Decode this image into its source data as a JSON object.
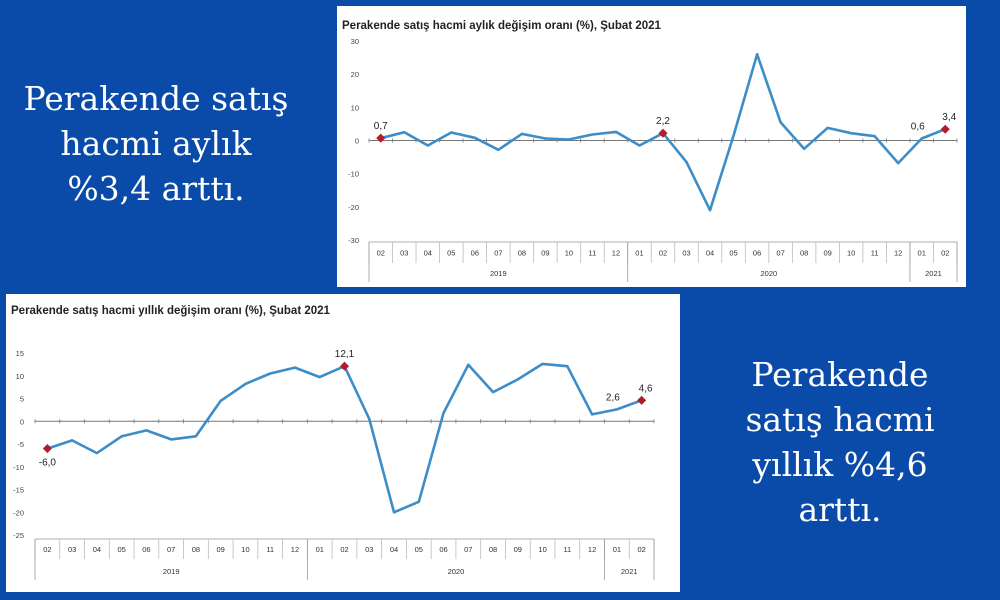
{
  "captions": {
    "monthly_lines": [
      "Perakende satış",
      "hacmi aylık",
      "%3,4 arttı."
    ],
    "annual_lines": [
      "Perakende",
      "satış hacmi",
      "yıllık %4,6",
      "arttı."
    ]
  },
  "colors": {
    "background": "#0a4aa8",
    "line": "#3c8dc8",
    "marker": "#b11d2b",
    "axis": "#555555"
  },
  "chart_data": [
    {
      "type": "line",
      "title": "Perakende satış hacmi aylık değişim oranı (%), Şubat 2021",
      "xlabel": "",
      "ylabel": "",
      "ylim": [
        -30,
        30
      ],
      "yticks": [
        30,
        20,
        10,
        0,
        -10,
        -20,
        -30
      ],
      "categories": [
        "02",
        "03",
        "04",
        "05",
        "06",
        "07",
        "08",
        "09",
        "10",
        "11",
        "12",
        "01",
        "02",
        "03",
        "04",
        "05",
        "06",
        "07",
        "08",
        "09",
        "10",
        "11",
        "12",
        "01",
        "02"
      ],
      "years": [
        {
          "label": "2019",
          "start": 0,
          "end": 10
        },
        {
          "label": "2020",
          "start": 11,
          "end": 22
        },
        {
          "label": "2021",
          "start": 23,
          "end": 24
        }
      ],
      "series": [
        {
          "values": [
            0.7,
            2.5,
            -1.5,
            2.4,
            0.8,
            -2.8,
            2.0,
            0.6,
            0.3,
            1.8,
            2.6,
            -1.5,
            2.2,
            -6.5,
            -21.0,
            1.5,
            26.0,
            5.5,
            -2.5,
            3.8,
            2.2,
            1.3,
            -6.8,
            0.6,
            3.4
          ]
        }
      ],
      "annotations": [
        {
          "index": 0,
          "label": "0,7",
          "marker": true
        },
        {
          "index": 12,
          "label": "2,2",
          "marker": true
        },
        {
          "index": 23,
          "label": "0,6",
          "marker": false
        },
        {
          "index": 24,
          "label": "3,4",
          "marker": true
        }
      ]
    },
    {
      "type": "line",
      "title": "Perakende satış hacmi yıllık değişim oranı (%), Şubat 2021",
      "xlabel": "",
      "ylabel": "",
      "ylim": [
        -25,
        15
      ],
      "yticks": [
        15,
        10,
        5,
        0,
        -5,
        -10,
        -15,
        -20,
        -25
      ],
      "categories": [
        "02",
        "03",
        "04",
        "05",
        "06",
        "07",
        "08",
        "09",
        "10",
        "11",
        "12",
        "01",
        "02",
        "03",
        "04",
        "05",
        "06",
        "07",
        "08",
        "09",
        "10",
        "11",
        "12",
        "01",
        "02"
      ],
      "years": [
        {
          "label": "2019",
          "start": 0,
          "end": 10
        },
        {
          "label": "2020",
          "start": 11,
          "end": 22
        },
        {
          "label": "2021",
          "start": 23,
          "end": 24
        }
      ],
      "series": [
        {
          "values": [
            -6.0,
            -4.2,
            -7.0,
            -3.3,
            -2.0,
            -4.0,
            -3.3,
            4.5,
            8.2,
            10.5,
            11.8,
            9.7,
            12.1,
            0.5,
            -20.0,
            -17.7,
            1.8,
            12.4,
            6.4,
            9.2,
            12.6,
            12.1,
            1.5,
            2.6,
            4.6
          ]
        }
      ],
      "annotations": [
        {
          "index": 0,
          "label": "-6,0",
          "marker": true
        },
        {
          "index": 12,
          "label": "12,1",
          "marker": true
        },
        {
          "index": 23,
          "label": "2,6",
          "marker": false
        },
        {
          "index": 24,
          "label": "4,6",
          "marker": true
        }
      ]
    }
  ]
}
